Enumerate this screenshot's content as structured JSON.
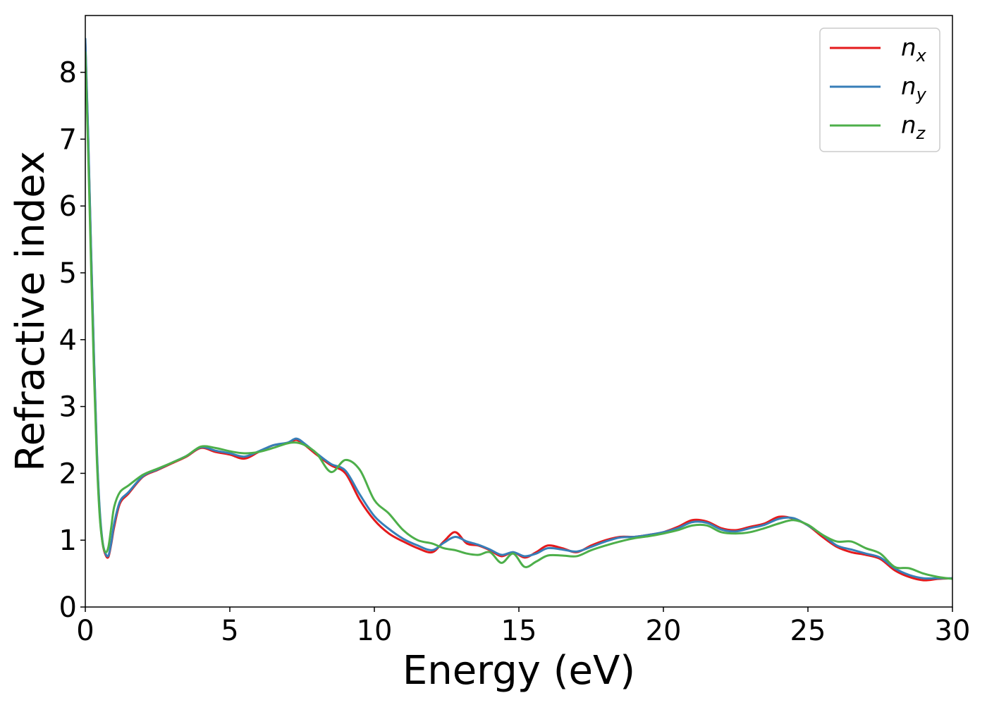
{
  "chart_data": {
    "type": "line",
    "xlabel": "Energy (eV)",
    "ylabel": "Refractive index",
    "xlim": [
      0,
      30
    ],
    "ylim": [
      0,
      8.85
    ],
    "xticks": [
      0,
      5,
      10,
      15,
      20,
      25,
      30
    ],
    "yticks": [
      0,
      1,
      2,
      3,
      4,
      5,
      6,
      7,
      8
    ],
    "legend": "top-right",
    "grid": false,
    "series": [
      {
        "name": "n",
        "subscript": "x",
        "color": "#e41a1c",
        "x": [
          0,
          0.1,
          0.2,
          0.3,
          0.4,
          0.5,
          0.6,
          0.7,
          0.8,
          0.9,
          1.0,
          1.2,
          1.5,
          2.0,
          2.5,
          3.0,
          3.5,
          4.0,
          4.5,
          5.0,
          5.5,
          6.0,
          6.5,
          7.0,
          7.3,
          7.6,
          8.0,
          8.5,
          9.0,
          9.5,
          10.0,
          10.5,
          11.0,
          11.5,
          12.0,
          12.4,
          12.8,
          13.2,
          13.6,
          14.0,
          14.4,
          14.8,
          15.2,
          15.6,
          16.0,
          16.5,
          17.0,
          17.5,
          18.0,
          18.5,
          19.0,
          19.5,
          20.0,
          20.5,
          21.0,
          21.5,
          22.0,
          22.5,
          23.0,
          23.5,
          24.0,
          24.5,
          25.0,
          25.5,
          26.0,
          26.5,
          27.0,
          27.5,
          28.0,
          28.5,
          29.0,
          29.5,
          30.0
        ],
        "y": [
          8.45,
          7.0,
          5.3,
          3.7,
          2.3,
          1.4,
          0.95,
          0.78,
          0.75,
          0.95,
          1.2,
          1.55,
          1.7,
          1.95,
          2.05,
          2.15,
          2.25,
          2.38,
          2.32,
          2.28,
          2.22,
          2.32,
          2.42,
          2.45,
          2.5,
          2.42,
          2.28,
          2.12,
          2.0,
          1.6,
          1.3,
          1.1,
          0.98,
          0.88,
          0.82,
          0.98,
          1.12,
          0.95,
          0.92,
          0.85,
          0.76,
          0.82,
          0.74,
          0.82,
          0.92,
          0.88,
          0.82,
          0.92,
          1.0,
          1.05,
          1.05,
          1.08,
          1.12,
          1.2,
          1.3,
          1.28,
          1.18,
          1.15,
          1.2,
          1.25,
          1.35,
          1.32,
          1.22,
          1.05,
          0.9,
          0.82,
          0.78,
          0.72,
          0.55,
          0.45,
          0.4,
          0.42,
          0.43
        ]
      },
      {
        "name": "n",
        "subscript": "y",
        "color": "#377eb8",
        "x": [
          0,
          0.1,
          0.2,
          0.3,
          0.4,
          0.5,
          0.6,
          0.7,
          0.8,
          0.9,
          1.0,
          1.2,
          1.5,
          2.0,
          2.5,
          3.0,
          3.5,
          4.0,
          4.5,
          5.0,
          5.5,
          6.0,
          6.5,
          7.0,
          7.3,
          7.6,
          8.0,
          8.5,
          9.0,
          9.5,
          10.0,
          10.5,
          11.0,
          11.5,
          12.0,
          12.4,
          12.8,
          13.2,
          13.6,
          14.0,
          14.4,
          14.8,
          15.2,
          15.6,
          16.0,
          16.5,
          17.0,
          17.5,
          18.0,
          18.5,
          19.0,
          19.5,
          20.0,
          20.5,
          21.0,
          21.5,
          22.0,
          22.5,
          23.0,
          23.5,
          24.0,
          24.5,
          25.0,
          25.5,
          26.0,
          26.5,
          27.0,
          27.5,
          28.0,
          28.5,
          29.0,
          29.5,
          30.0
        ],
        "y": [
          8.5,
          7.05,
          5.35,
          3.75,
          2.35,
          1.45,
          0.97,
          0.8,
          0.77,
          0.97,
          1.25,
          1.58,
          1.72,
          1.96,
          2.06,
          2.16,
          2.26,
          2.39,
          2.34,
          2.3,
          2.25,
          2.33,
          2.42,
          2.46,
          2.52,
          2.44,
          2.3,
          2.14,
          2.04,
          1.68,
          1.36,
          1.17,
          1.02,
          0.92,
          0.85,
          0.96,
          1.05,
          0.98,
          0.93,
          0.86,
          0.78,
          0.82,
          0.76,
          0.8,
          0.88,
          0.86,
          0.83,
          0.9,
          0.98,
          1.04,
          1.05,
          1.08,
          1.12,
          1.18,
          1.27,
          1.26,
          1.16,
          1.13,
          1.18,
          1.23,
          1.32,
          1.33,
          1.22,
          1.08,
          0.92,
          0.86,
          0.8,
          0.74,
          0.58,
          0.48,
          0.43,
          0.43,
          0.43
        ]
      },
      {
        "name": "n",
        "subscript": "z",
        "color": "#4daf4a",
        "x": [
          0,
          0.1,
          0.2,
          0.3,
          0.4,
          0.5,
          0.6,
          0.7,
          0.8,
          0.9,
          1.0,
          1.2,
          1.5,
          2.0,
          2.5,
          3.0,
          3.5,
          4.0,
          4.5,
          5.0,
          5.5,
          6.0,
          6.5,
          7.0,
          7.3,
          7.6,
          8.0,
          8.5,
          9.0,
          9.5,
          10.0,
          10.5,
          11.0,
          11.5,
          12.0,
          12.4,
          12.8,
          13.2,
          13.6,
          14.0,
          14.4,
          14.8,
          15.2,
          15.6,
          16.0,
          16.5,
          17.0,
          17.5,
          18.0,
          18.5,
          19.0,
          19.5,
          20.0,
          20.5,
          21.0,
          21.5,
          22.0,
          22.5,
          23.0,
          23.5,
          24.0,
          24.5,
          25.0,
          25.5,
          26.0,
          26.5,
          27.0,
          27.5,
          28.0,
          28.5,
          29.0,
          29.5,
          30.0
        ],
        "y": [
          8.3,
          6.8,
          5.1,
          3.5,
          2.2,
          1.35,
          0.95,
          0.82,
          0.9,
          1.2,
          1.5,
          1.72,
          1.82,
          1.98,
          2.07,
          2.16,
          2.26,
          2.4,
          2.38,
          2.33,
          2.3,
          2.32,
          2.38,
          2.45,
          2.46,
          2.42,
          2.3,
          2.02,
          2.2,
          2.05,
          1.6,
          1.4,
          1.15,
          1.0,
          0.95,
          0.88,
          0.85,
          0.8,
          0.78,
          0.82,
          0.66,
          0.8,
          0.6,
          0.68,
          0.77,
          0.77,
          0.76,
          0.85,
          0.92,
          0.98,
          1.03,
          1.06,
          1.1,
          1.15,
          1.22,
          1.22,
          1.12,
          1.1,
          1.12,
          1.18,
          1.25,
          1.3,
          1.23,
          1.08,
          0.98,
          0.98,
          0.88,
          0.8,
          0.6,
          0.58,
          0.5,
          0.45,
          0.42
        ]
      }
    ]
  }
}
